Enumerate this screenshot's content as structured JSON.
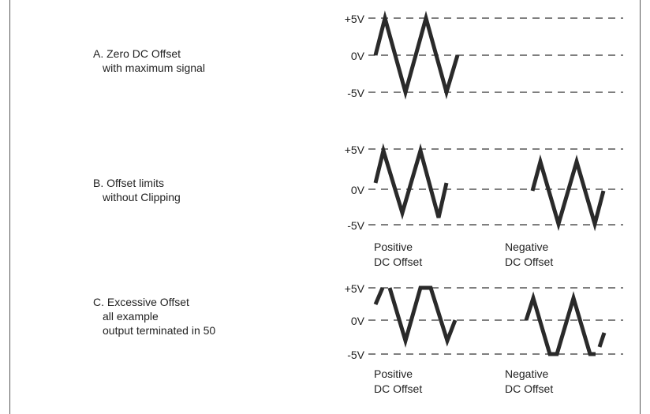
{
  "sections": {
    "a": {
      "title": "A. Zero DC Offset",
      "subtitle": "with maximum signal",
      "levels": {
        "top": "+5V",
        "mid": "0V",
        "bottom": "-5V"
      }
    },
    "b": {
      "title": "B. Offset limits",
      "subtitle": "without Clipping",
      "levels": {
        "top": "+5V",
        "mid": "0V",
        "bottom": "-5V"
      },
      "captions": {
        "positive_line1": "Positive",
        "positive_line2": "DC Offset",
        "negative_line1": "Negative",
        "negative_line2": "DC Offset"
      }
    },
    "c": {
      "title": "C. Excessive Offset",
      "line2": "all example",
      "line3": "output terminated in 50",
      "levels": {
        "top": "+5V",
        "mid": "0V",
        "bottom": "-5V"
      },
      "captions": {
        "positive_line1": "Positive",
        "positive_line2": "DC Offset",
        "negative_line1": "Negative",
        "negative_line2": "DC Offset"
      }
    }
  },
  "colors": {
    "waveform": "#2a2a2a",
    "grid": "#333333"
  }
}
